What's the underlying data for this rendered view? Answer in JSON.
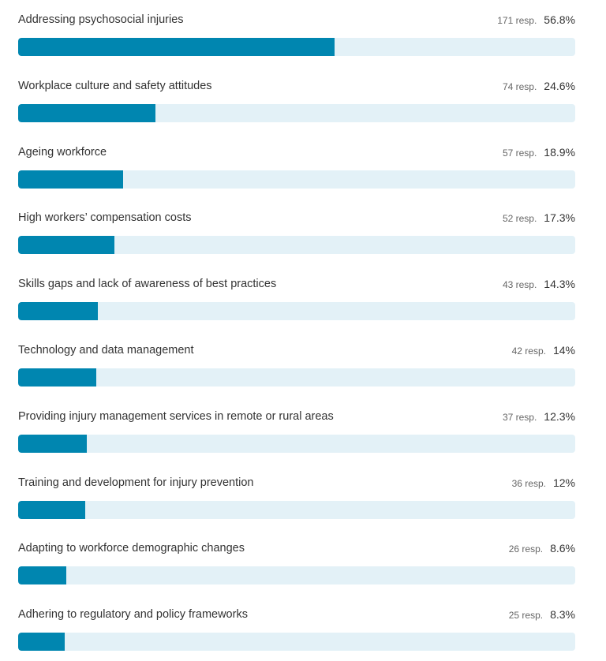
{
  "chart_data": {
    "type": "bar",
    "orientation": "horizontal",
    "count_suffix": "resp.",
    "colors": {
      "fill": "#0086b0",
      "track": "#e3f1f7"
    },
    "rows": [
      {
        "label": "Addressing psychosocial injuries",
        "responses": 171,
        "count_text": "171 resp.",
        "percent": 56.8,
        "percent_text": "56.8%"
      },
      {
        "label": "Workplace culture and safety attitudes",
        "responses": 74,
        "count_text": "74 resp.",
        "percent": 24.6,
        "percent_text": "24.6%"
      },
      {
        "label": "Ageing workforce",
        "responses": 57,
        "count_text": "57 resp.",
        "percent": 18.9,
        "percent_text": "18.9%"
      },
      {
        "label": "High workers’ compensation costs",
        "responses": 52,
        "count_text": "52 resp.",
        "percent": 17.3,
        "percent_text": "17.3%"
      },
      {
        "label": "Skills gaps and lack of awareness of best practices",
        "responses": 43,
        "count_text": "43 resp.",
        "percent": 14.3,
        "percent_text": "14.3%"
      },
      {
        "label": "Technology and data management",
        "responses": 42,
        "count_text": "42 resp.",
        "percent": 14,
        "percent_text": "14%"
      },
      {
        "label": "Providing injury management services in remote or rural areas",
        "responses": 37,
        "count_text": "37 resp.",
        "percent": 12.3,
        "percent_text": "12.3%"
      },
      {
        "label": "Training and development for injury prevention",
        "responses": 36,
        "count_text": "36 resp.",
        "percent": 12,
        "percent_text": "12%"
      },
      {
        "label": "Adapting to workforce demographic changes",
        "responses": 26,
        "count_text": "26 resp.",
        "percent": 8.6,
        "percent_text": "8.6%"
      },
      {
        "label": "Adhering to regulatory and policy frameworks",
        "responses": 25,
        "count_text": "25 resp.",
        "percent": 8.3,
        "percent_text": "8.3%"
      }
    ]
  }
}
